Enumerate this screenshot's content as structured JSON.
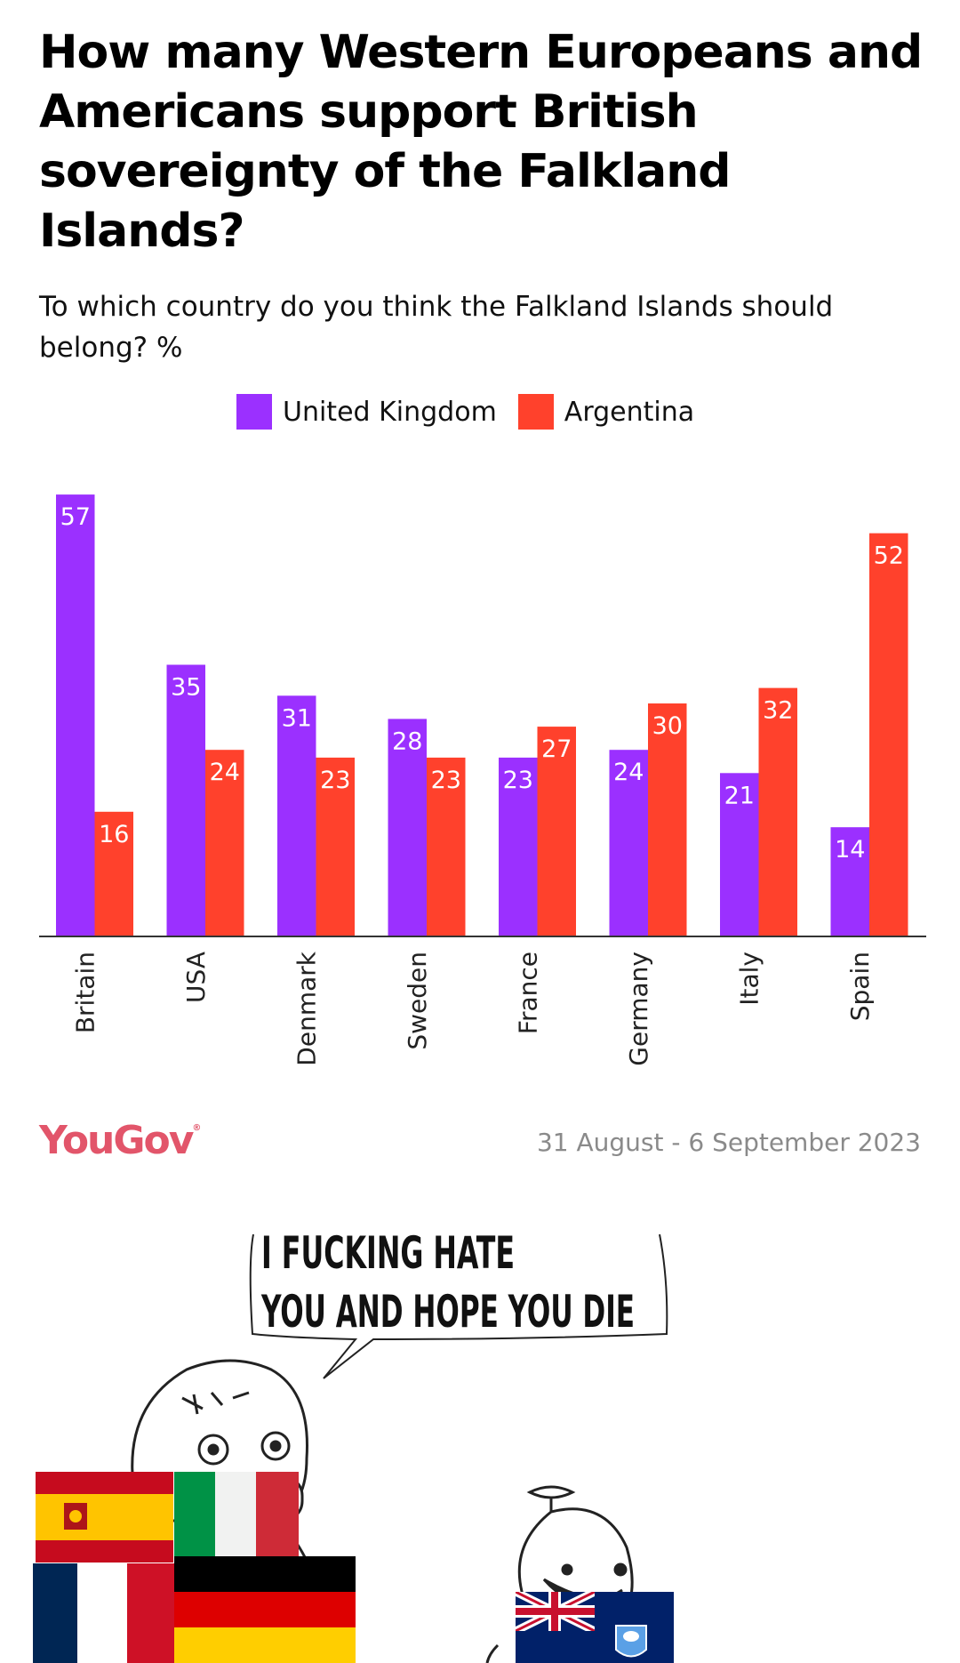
{
  "header": {
    "title": "How many Western Europeans and Americans support British sovereignty of the Falkland Islands?",
    "subtitle": "To which country do you think the Falkland Islands should belong? %"
  },
  "legend": [
    {
      "label": "United Kingdom",
      "color": "#9b30ff"
    },
    {
      "label": "Argentina",
      "color": "#ff412c"
    }
  ],
  "chart_data": {
    "type": "bar",
    "title": "How many Western Europeans and Americans support British sovereignty of the Falkland Islands?",
    "subtitle": "To which country do you think the Falkland Islands should belong? %",
    "categories": [
      "Britain",
      "USA",
      "Denmark",
      "Sweden",
      "France",
      "Germany",
      "Italy",
      "Spain"
    ],
    "series": [
      {
        "name": "United Kingdom",
        "color": "#9b30ff",
        "values": [
          57,
          35,
          31,
          28,
          23,
          24,
          21,
          14
        ]
      },
      {
        "name": "Argentina",
        "color": "#ff412c",
        "values": [
          16,
          24,
          23,
          23,
          27,
          30,
          32,
          52
        ]
      }
    ],
    "ylim": [
      0,
      60
    ],
    "grid": false,
    "legend_position": "top-center",
    "data_labels": true
  },
  "footer": {
    "logo": "YouGov",
    "logo_mark": "®",
    "date": "31 August - 6 September 2023"
  },
  "meme": {
    "speech_line_1": "I FUCKING HATE",
    "speech_line_2": "YOU AND HOPE YOU DIE",
    "left_flags": [
      "spain-flag",
      "italy-flag",
      "france-flag",
      "germany-flag"
    ],
    "right_flag": "falkland-islands-flag"
  }
}
